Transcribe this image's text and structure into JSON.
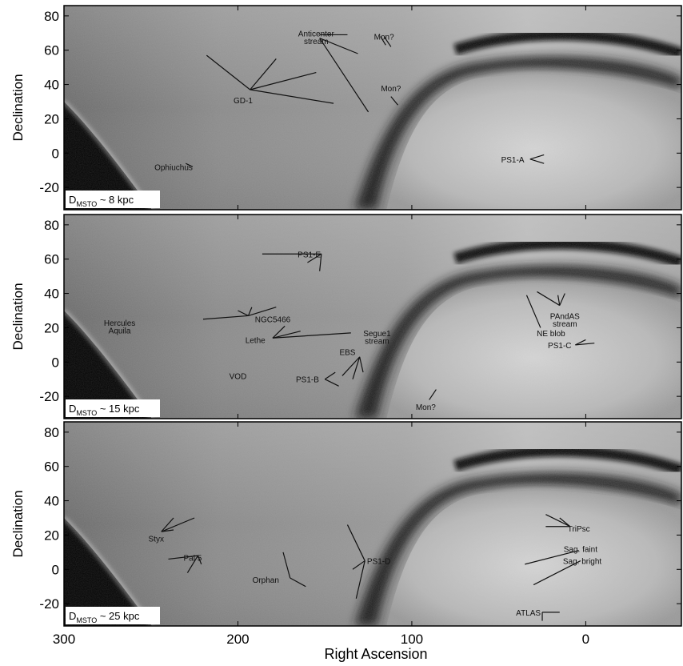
{
  "figure": {
    "xlabel": "Right Ascension",
    "ylabel": "Declination",
    "x_ticks": [
      "300",
      "200",
      "100",
      "0"
    ],
    "y_ticks": [
      "80",
      "60",
      "40",
      "20",
      "0",
      "-20"
    ],
    "ra_range": [
      300,
      -55
    ],
    "dec_range": [
      -33,
      86
    ]
  },
  "panels": [
    {
      "distance_label": {
        "prefix": "D",
        "sub": "MSTO",
        "suffix": " ~ 8 kpc"
      },
      "annotations": [
        {
          "text": "Anticenter",
          "ra": 155,
          "dec": 70
        },
        {
          "text": "stream",
          "ra": 155,
          "dec": 65.5
        },
        {
          "text": "Mon?",
          "ra": 116,
          "dec": 68
        },
        {
          "text": "Mon?",
          "ra": 112,
          "dec": 38
        },
        {
          "text": "GD-1",
          "ra": 197,
          "dec": 31
        },
        {
          "text": "Ophiuchus",
          "ra": 237,
          "dec": -8
        },
        {
          "text": "PS1-A",
          "ra": 42,
          "dec": -3.5
        }
      ]
    },
    {
      "distance_label": {
        "prefix": "D",
        "sub": "MSTO",
        "suffix": " ~ 15 kpc"
      },
      "annotations": [
        {
          "text": "PS1-E",
          "ra": 159,
          "dec": 63
        },
        {
          "text": "NGC5466",
          "ra": 180,
          "dec": 25
        },
        {
          "text": "Hercules",
          "ra": 268,
          "dec": 23
        },
        {
          "text": "Aquila",
          "ra": 268,
          "dec": 18.5
        },
        {
          "text": "Lethe",
          "ra": 190,
          "dec": 13
        },
        {
          "text": "Segue1",
          "ra": 120,
          "dec": 17
        },
        {
          "text": "stream",
          "ra": 120,
          "dec": 12.5
        },
        {
          "text": "EBS",
          "ra": 137,
          "dec": 6
        },
        {
          "text": "VOD",
          "ra": 200,
          "dec": -8
        },
        {
          "text": "PS1-B",
          "ra": 160,
          "dec": -10
        },
        {
          "text": "Mon?",
          "ra": 92,
          "dec": -26
        },
        {
          "text": "NE blob",
          "ra": 20,
          "dec": 17
        },
        {
          "text": "PAndAS",
          "ra": 12,
          "dec": 27
        },
        {
          "text": "stream",
          "ra": 12,
          "dec": 22.5
        },
        {
          "text": "PS1-C",
          "ra": 15,
          "dec": 10
        }
      ]
    },
    {
      "distance_label": {
        "prefix": "D",
        "sub": "MSTO",
        "suffix": " ~ 25 kpc"
      },
      "annotations": [
        {
          "text": "Styx",
          "ra": 247,
          "dec": 18
        },
        {
          "text": "Pal 5",
          "ra": 226,
          "dec": 7
        },
        {
          "text": "PS1-D",
          "ra": 119,
          "dec": 5
        },
        {
          "text": "Orphan",
          "ra": 184,
          "dec": -6
        },
        {
          "text": "TriPsc",
          "ra": 4,
          "dec": 24
        },
        {
          "text": "Sag. faint",
          "ra": 3,
          "dec": 12
        },
        {
          "text": "Sag. bright",
          "ra": 2,
          "dec": 5
        },
        {
          "text": "ATLAS",
          "ra": 33,
          "dec": -25
        }
      ]
    }
  ],
  "colors": {
    "frame": "#000000",
    "annotation": "#111111",
    "label_box": "#ffffff"
  }
}
